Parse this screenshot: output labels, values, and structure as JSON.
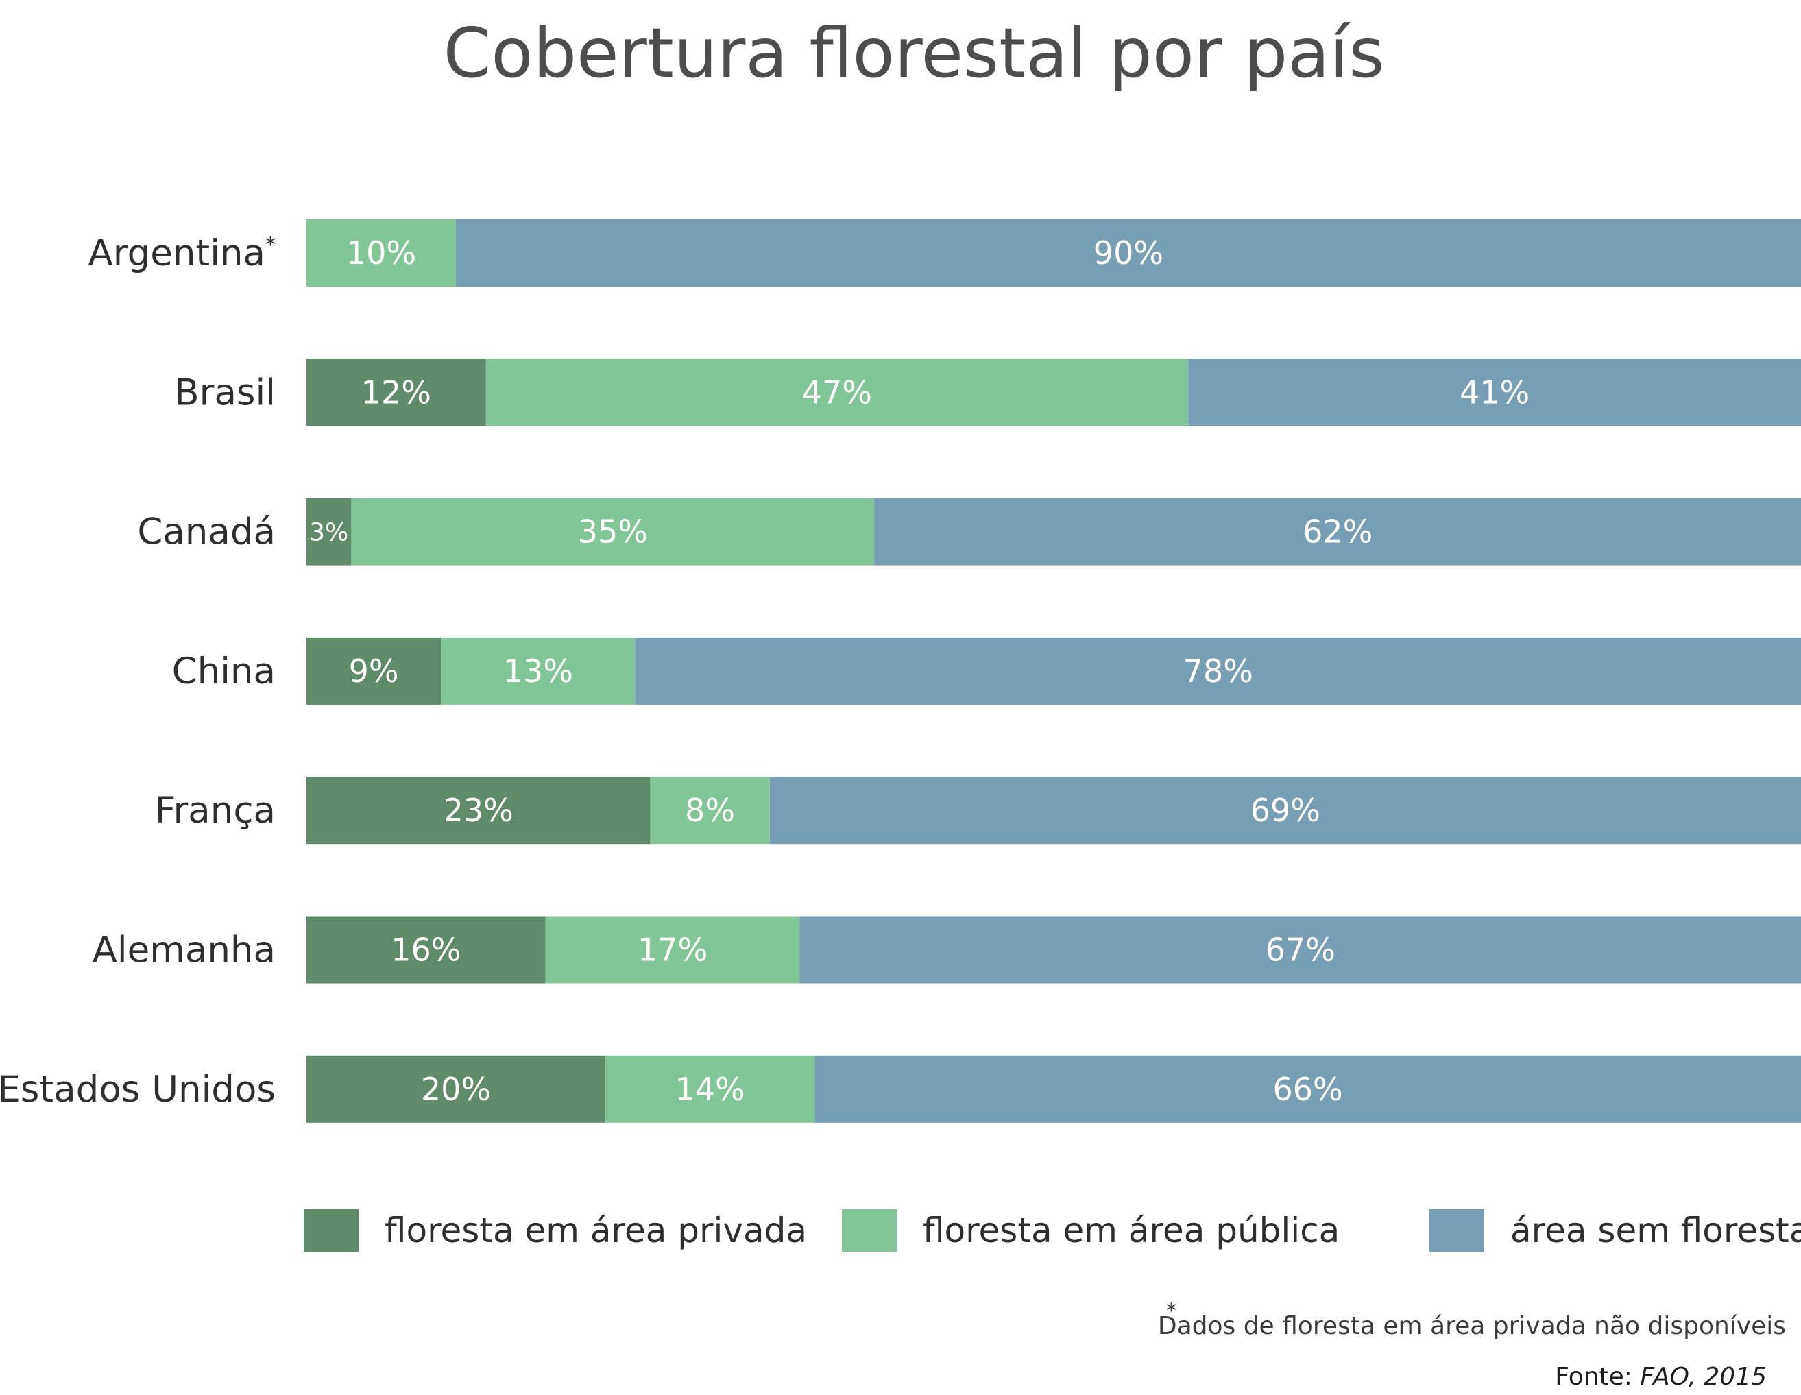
{
  "chart_data": {
    "type": "bar",
    "orientation": "horizontal",
    "stacked": true,
    "title": "Cobertura florestal por país",
    "categories": [
      "Argentina",
      "Brasil",
      "Canadá",
      "China",
      "França",
      "Alemanha",
      "Estados Unidos"
    ],
    "category_notes": [
      "*",
      "",
      "",
      "",
      "",
      "",
      ""
    ],
    "series": [
      {
        "name": "floresta em área privada",
        "color": "#5e8c6a",
        "values": [
          null,
          12,
          3,
          9,
          23,
          16,
          20
        ],
        "labels": [
          "",
          "12%",
          "3%",
          "9%",
          "23%",
          "16%",
          "20%"
        ]
      },
      {
        "name": "floresta em área pública",
        "color": "#82c697",
        "values": [
          10,
          47,
          35,
          13,
          8,
          17,
          14
        ],
        "labels": [
          "10%",
          "47%",
          "35%",
          "13%",
          "8%",
          "17%",
          "14%"
        ]
      },
      {
        "name": "área sem floresta",
        "color": "#769eb4",
        "values": [
          90,
          41,
          62,
          78,
          69,
          67,
          66
        ],
        "labels": [
          "90%",
          "41%",
          "62%",
          "78%",
          "69%",
          "67%",
          "66%"
        ]
      }
    ],
    "xlim": [
      0,
      100
    ],
    "grid": false,
    "legend_position": "bottom",
    "footnote": {
      "marker": "*",
      "text": "Dados de floresta em área privada não disponíveis"
    },
    "source": {
      "label": "Fonte:",
      "value": "FAO, 2015"
    }
  }
}
